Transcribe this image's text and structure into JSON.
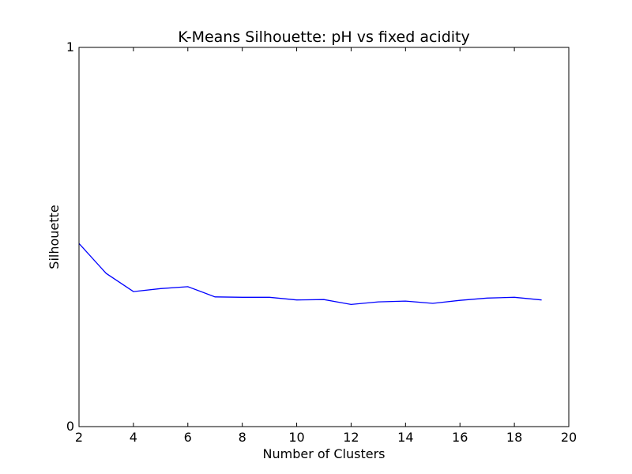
{
  "chart_data": {
    "type": "line",
    "title": "K-Means Silhouette: pH vs fixed acidity",
    "xlabel": "Number of Clusters",
    "ylabel": "Silhouette",
    "xlim": [
      2,
      20
    ],
    "ylim": [
      0,
      1
    ],
    "xticks": [
      2,
      4,
      6,
      8,
      10,
      12,
      14,
      16,
      18,
      20
    ],
    "yticks": [
      0,
      1
    ],
    "grid": false,
    "legend": "none",
    "series": [
      {
        "color": "#0000ff",
        "x": [
          2,
          3,
          4,
          5,
          6,
          7,
          8,
          9,
          10,
          11,
          12,
          13,
          14,
          15,
          16,
          17,
          18,
          19
        ],
        "y": [
          0.483,
          0.404,
          0.356,
          0.364,
          0.369,
          0.342,
          0.341,
          0.341,
          0.334,
          0.335,
          0.322,
          0.329,
          0.331,
          0.325,
          0.333,
          0.339,
          0.341,
          0.334
        ]
      }
    ]
  }
}
